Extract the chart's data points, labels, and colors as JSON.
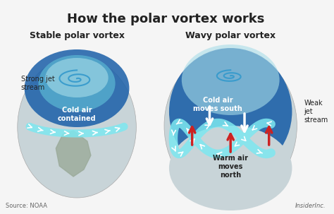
{
  "title": "How the polar vortex works",
  "subtitle_left": "Stable polar vortex",
  "subtitle_right": "Wavy polar vortex",
  "label_strong": "Strong jet\nstream",
  "label_cold_contained": "Cold air\ncontained",
  "label_cold_south": "Cold air\nmoves south",
  "label_warm_north": "Warm air\nmoves\nnorth",
  "label_weak": "Weak\njet\nstream",
  "source": "Source: NOAA",
  "brand": "InsiderInc.",
  "bg_color": "#f5f5f5",
  "globe_color": "#c8d4d8",
  "cold_dark": "#1a5fa8",
  "cold_light": "#5bb8d4",
  "cold_cap": "#a8dde8",
  "jet_stream_color": "#7de8f0",
  "spiral_color": "#3399cc",
  "warm_arrow_color": "#cc2222",
  "cold_arrow_color": "#ffffff"
}
